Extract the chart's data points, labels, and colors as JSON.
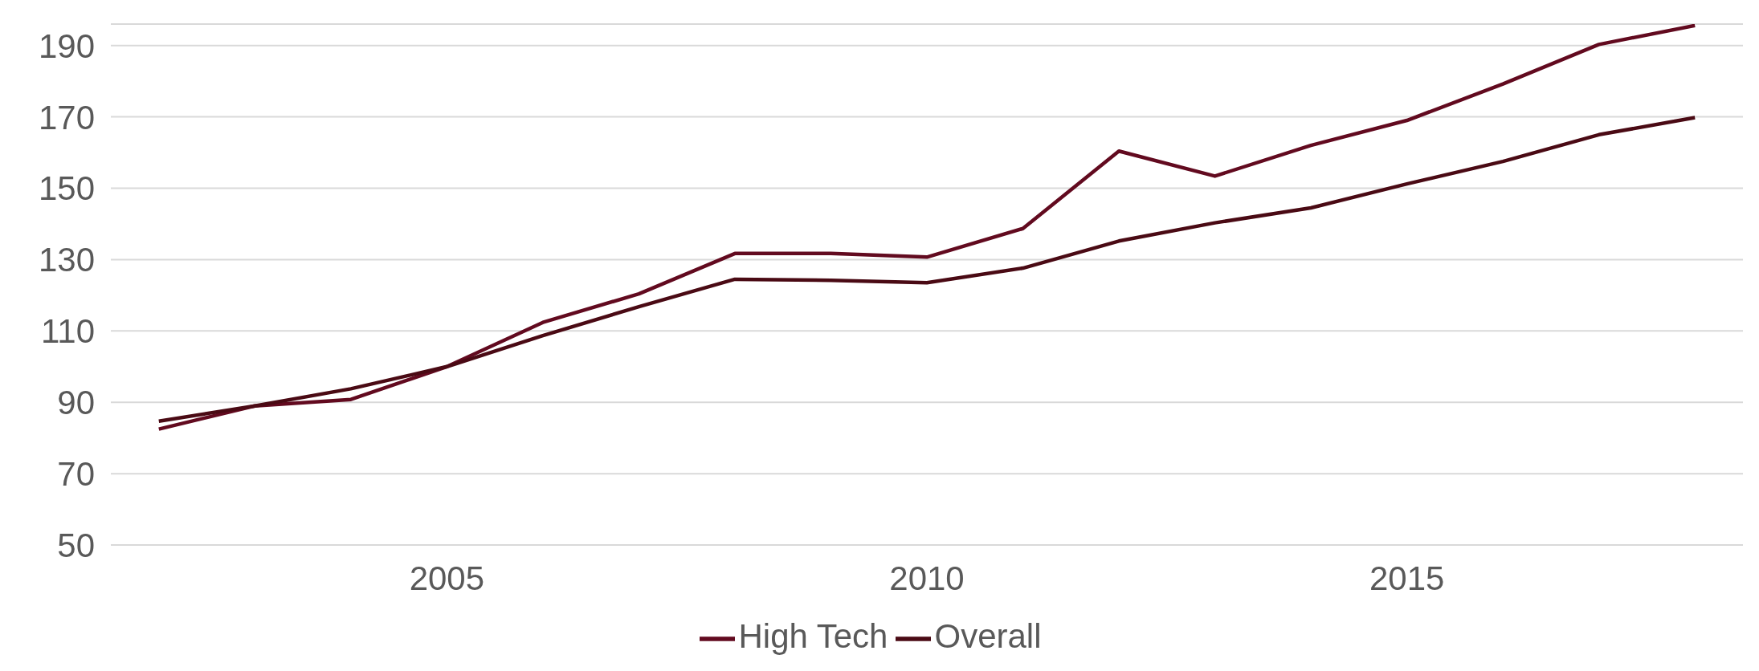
{
  "chart_data": {
    "type": "line",
    "x": [
      2002,
      2003,
      2004,
      2005,
      2006,
      2007,
      2008,
      2009,
      2010,
      2011,
      2012,
      2013,
      2014,
      2015,
      2016,
      2017,
      2018
    ],
    "series": [
      {
        "name": "High Tech",
        "color": "#620a1f",
        "values": [
          82.5,
          89,
          90.8,
          100,
          112.4,
          120.4,
          131.7,
          131.7,
          130.7,
          138.7,
          160.4,
          153.4,
          162,
          169,
          179.2,
          190.3,
          195.6
        ]
      },
      {
        "name": "Overall",
        "color": "#4a0a14",
        "values": [
          84.7,
          89,
          93.8,
          100,
          108.7,
          116.8,
          124.5,
          124.2,
          123.5,
          127.6,
          135.2,
          140.3,
          144.5,
          151.2,
          157.5,
          165,
          169.8
        ]
      }
    ],
    "xlim": [
      2001.5,
      2018.5
    ],
    "xticks": [
      2005,
      2010,
      2015
    ],
    "ylim": [
      50,
      196
    ],
    "yticks": [
      50,
      70,
      90,
      110,
      130,
      150,
      170,
      190
    ],
    "grid": "y",
    "legend": "bottom",
    "marker": "none",
    "line_style": "solid"
  }
}
